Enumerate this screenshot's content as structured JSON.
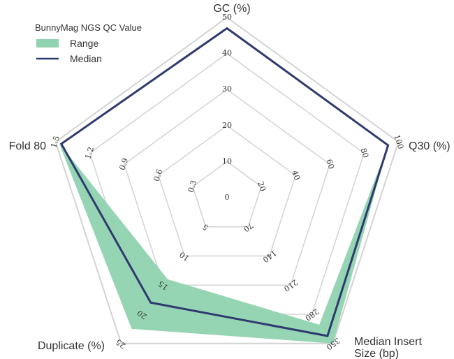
{
  "chart_data": {
    "type": "radar",
    "legend": {
      "title": "BunnyMag NGS QC Value",
      "entries": [
        "Range",
        "Median"
      ]
    },
    "axes": [
      {
        "name": "GC (%)",
        "label_lines": [
          "GC (%)"
        ],
        "ticks": [
          "10",
          "20",
          "30",
          "40",
          "50"
        ],
        "max": 50
      },
      {
        "name": "Q30 (%)",
        "label_lines": [
          "Q30 (%)"
        ],
        "ticks": [
          "20",
          "40",
          "60",
          "80",
          "100"
        ],
        "max": 100
      },
      {
        "name": "Median Insert Size (bp)",
        "label_lines": [
          "Median Insert",
          "Size (bp)"
        ],
        "ticks": [
          "70",
          "140",
          "210",
          "280",
          "350"
        ],
        "max": 350
      },
      {
        "name": "Duplicate (%)",
        "label_lines": [
          "Duplicate (%)"
        ],
        "ticks": [
          "5",
          "10",
          "15",
          "20",
          "25"
        ],
        "max": 25
      },
      {
        "name": "Fold 80",
        "label_lines": [
          "Fold 80"
        ],
        "ticks": [
          "0.3",
          "0.6",
          "0.9",
          "1.2",
          "1.5"
        ],
        "max": 1.5
      }
    ],
    "center_label": "0",
    "range": {
      "name": "Range",
      "min": [
        47,
        94,
        305,
        14,
        1.47
      ],
      "max": [
        47,
        94,
        350,
        22.5,
        1.47
      ]
    },
    "median": {
      "name": "Median",
      "values": [
        47,
        94,
        332,
        18,
        1.45
      ]
    },
    "colors": {
      "range_fill": "#8fd3b0",
      "median_line": "#2f3a6e",
      "grid": "#d3d3d3"
    },
    "grid_levels": 5
  }
}
